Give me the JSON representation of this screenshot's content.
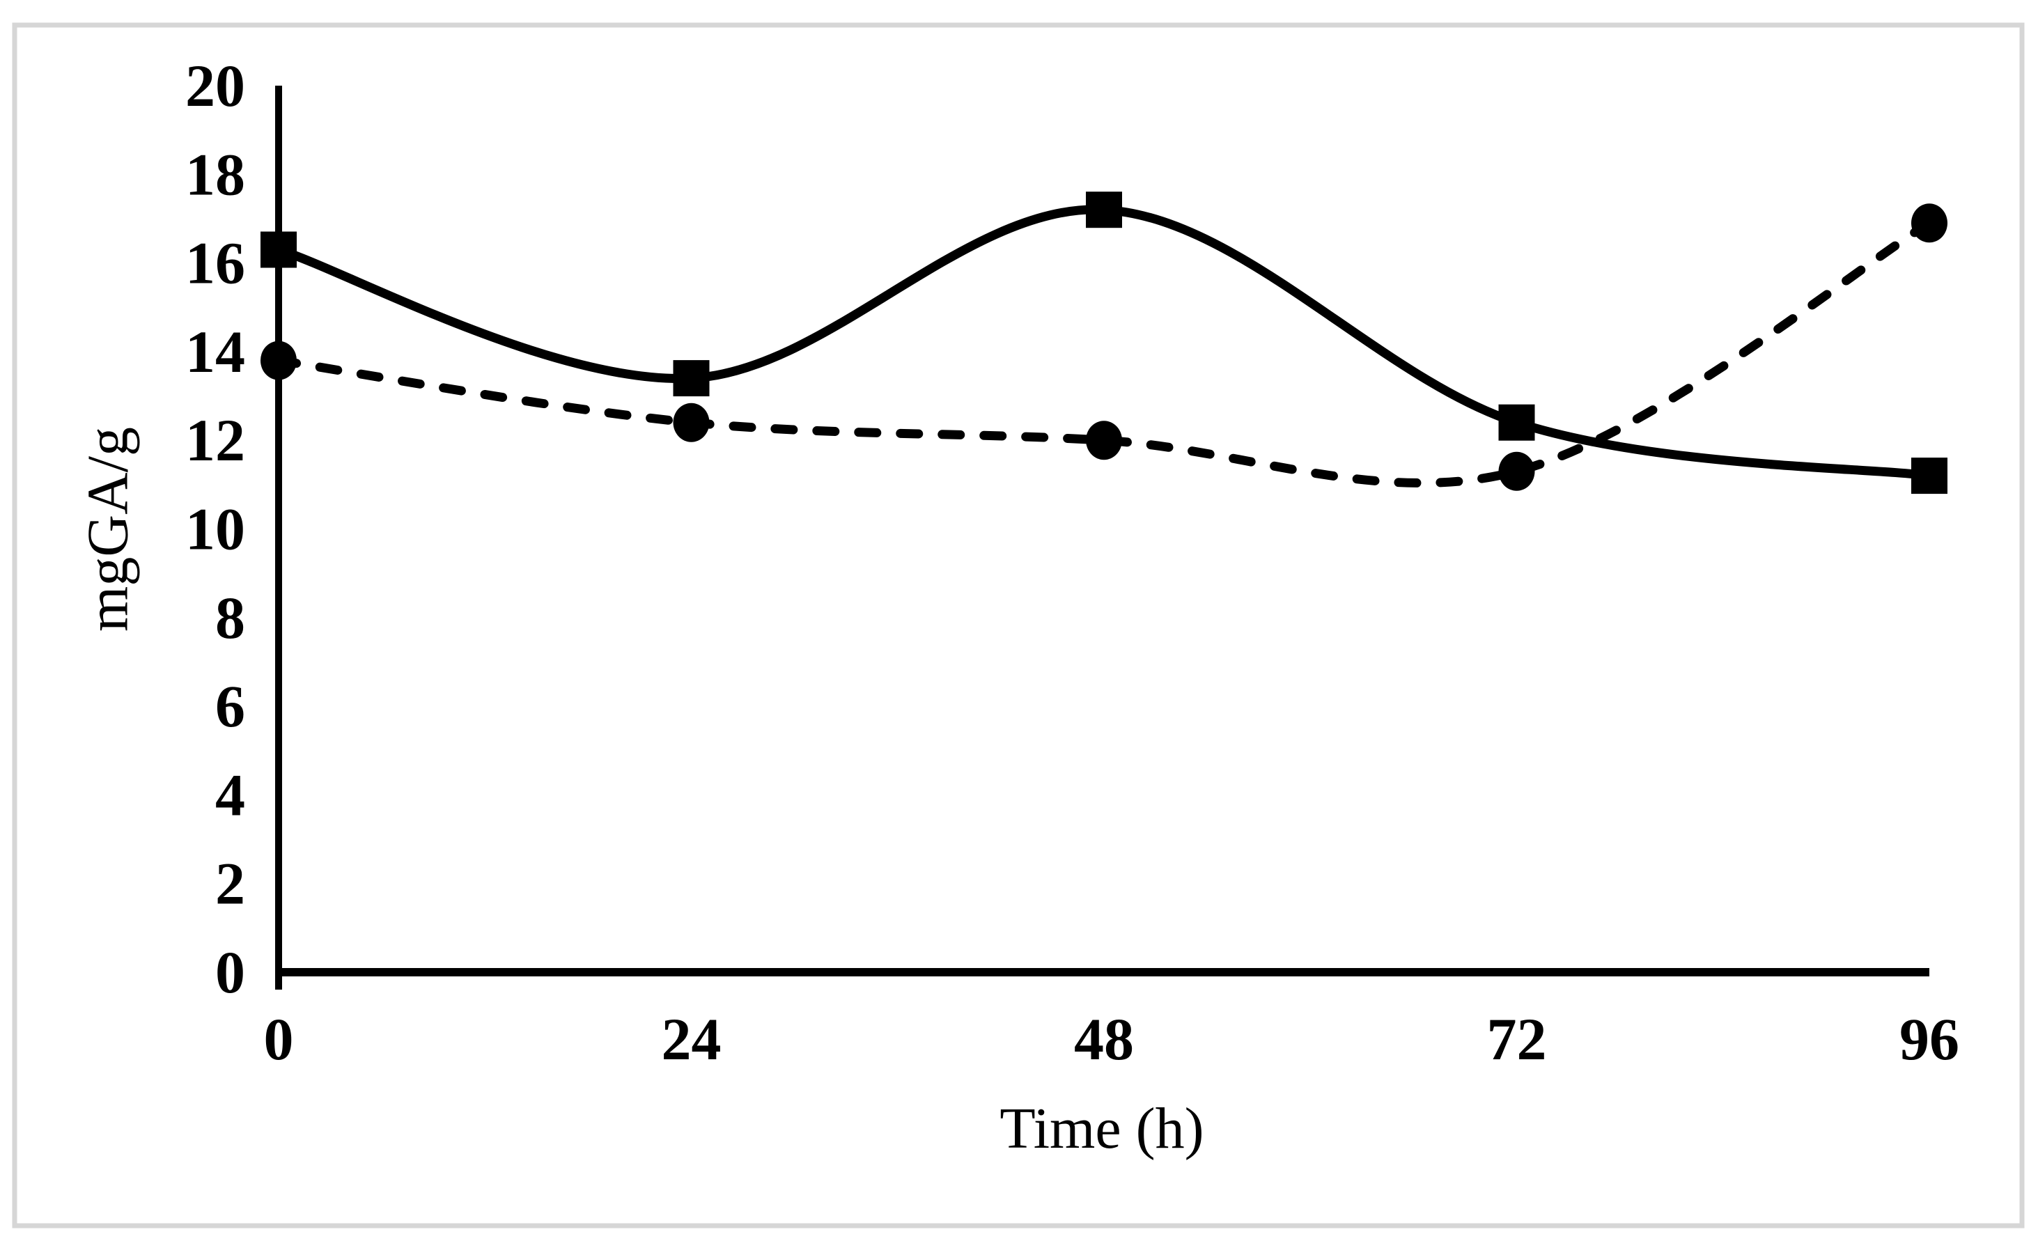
{
  "figure": {
    "background_color": "#ffffff",
    "frame_color": "#d6d6d6",
    "ink_color": "#000000"
  },
  "labels": {
    "y_ticks": [
      "20",
      "18",
      "16",
      "14",
      "12",
      "10",
      "8",
      "6",
      "4",
      "2",
      "0"
    ],
    "x_ticks": [
      "0",
      "24",
      "48",
      "72",
      "96"
    ]
  },
  "chart_data": {
    "type": "line",
    "title": "",
    "xlabel": "Time (h)",
    "ylabel": "mgGA/g",
    "x": [
      0,
      24,
      48,
      72,
      96
    ],
    "x_tick_labels": [
      "0",
      "24",
      "48",
      "72",
      "96"
    ],
    "y_tick_values": [
      0,
      2,
      4,
      6,
      8,
      10,
      12,
      14,
      16,
      18,
      20
    ],
    "xlim": [
      0,
      96
    ],
    "ylim": [
      0,
      20
    ],
    "grid": false,
    "legend_position": "none",
    "series": [
      {
        "name": "solid-line-square-markers",
        "line_style": "solid",
        "marker": "square",
        "color": "#000000",
        "values": [
          16.3,
          13.4,
          17.2,
          12.4,
          11.2
        ]
      },
      {
        "name": "dashed-line-circle-markers",
        "line_style": "dashed",
        "marker": "circle",
        "color": "#000000",
        "values": [
          13.8,
          12.4,
          12.0,
          11.3,
          16.9
        ]
      }
    ]
  }
}
